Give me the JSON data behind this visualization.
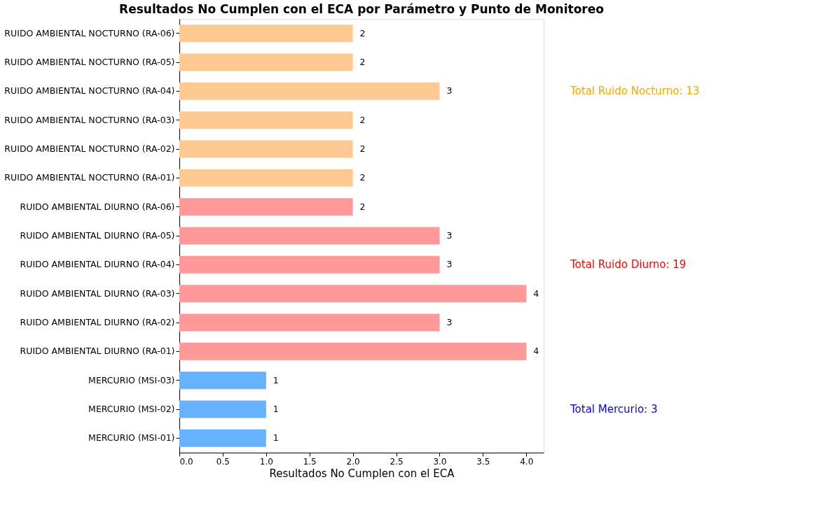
{
  "chart_data": {
    "type": "bar",
    "orientation": "horizontal",
    "title": "Resultados No Cumplen con el ECA por Parámetro y Punto de Monitoreo",
    "xlabel": "Resultados No Cumplen con el ECA",
    "categories": [
      "RUIDO AMBIENTAL NOCTURNO (RA-06)",
      "RUIDO AMBIENTAL NOCTURNO (RA-05)",
      "RUIDO AMBIENTAL NOCTURNO (RA-04)",
      "RUIDO AMBIENTAL NOCTURNO (RA-03)",
      "RUIDO AMBIENTAL NOCTURNO (RA-02)",
      "RUIDO AMBIENTAL NOCTURNO (RA-01)",
      "RUIDO AMBIENTAL DIURNO (RA-06)",
      "RUIDO AMBIENTAL DIURNO (RA-05)",
      "RUIDO AMBIENTAL DIURNO (RA-04)",
      "RUIDO AMBIENTAL DIURNO (RA-03)",
      "RUIDO AMBIENTAL DIURNO (RA-02)",
      "RUIDO AMBIENTAL DIURNO (RA-01)",
      "MERCURIO (MSI-03)",
      "MERCURIO (MSI-02)",
      "MERCURIO (MSI-01)"
    ],
    "values": [
      2,
      2,
      3,
      2,
      2,
      2,
      2,
      3,
      3,
      4,
      3,
      4,
      1,
      1,
      1
    ],
    "colors": [
      "#ffc993",
      "#ffc993",
      "#ffc993",
      "#ffc993",
      "#ffc993",
      "#ffc993",
      "#ff9999",
      "#ff9999",
      "#ff9999",
      "#ff9999",
      "#ff9999",
      "#ff9999",
      "#66b2ff",
      "#66b2ff",
      "#66b2ff"
    ],
    "xlim": [
      0,
      4.2
    ],
    "xticks": [
      {
        "value": 0,
        "label": "0.0"
      },
      {
        "value": 0.5,
        "label": "0.5"
      },
      {
        "value": 1,
        "label": "1.0"
      },
      {
        "value": 1.5,
        "label": "1.5"
      },
      {
        "value": 2,
        "label": "2.0"
      },
      {
        "value": 2.5,
        "label": "2.5"
      },
      {
        "value": 3,
        "label": "3.0"
      },
      {
        "value": 3.5,
        "label": "3.5"
      },
      {
        "value": 4,
        "label": "4.0"
      }
    ],
    "data_labels": true,
    "grid": false,
    "annotations": [
      "Total Ruido Nocturno: 13",
      "Total Ruido Diurno: 19",
      "Total Mercurio: 3"
    ]
  }
}
